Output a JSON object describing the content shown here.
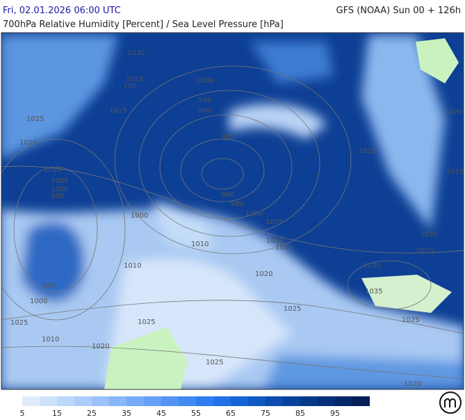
{
  "header": {
    "date": "Fri, 02.01.2026 06:00 UTC",
    "model": "GFS (NOAA) Sun 00 + 126h",
    "title": "700hPa Relative Humidity [Percent] / Sea Level Pressure [hPa]"
  },
  "isobar_labels": [
    "1030",
    "1015",
    "102",
    "1000",
    "995",
    "990",
    "1015",
    "1025",
    "1020",
    "985",
    "1010",
    "1005",
    "1000",
    "995",
    "990",
    "980",
    "1000",
    "1000",
    "1005",
    "1010",
    "1010",
    "1015",
    "1010",
    "1020",
    "995",
    "1000",
    "1030",
    "1035",
    "1025",
    "1025",
    "1025",
    "1025",
    "1010",
    "1020",
    "1025",
    "1020",
    "1020",
    "1020",
    "1015",
    "1025",
    "1020"
  ],
  "colorbar": {
    "range": [
      5,
      105
    ],
    "ticks": [
      5,
      15,
      25,
      35,
      45,
      55,
      65,
      75,
      85,
      95
    ],
    "steps": [
      5,
      10,
      15,
      20,
      25,
      30,
      35,
      40,
      45,
      50,
      55,
      60,
      65,
      70,
      75,
      80,
      85,
      90,
      95,
      100
    ],
    "colors": [
      "#e0ecfc",
      "#cfe2fb",
      "#bdd7fa",
      "#acccf9",
      "#9ac1f8",
      "#88b6f7",
      "#77abf6",
      "#65a0f5",
      "#5495f4",
      "#428af2",
      "#2f7ef0",
      "#1f72e8",
      "#1565d6",
      "#1058c2",
      "#0b4cae",
      "#08429b",
      "#063888",
      "#052f76",
      "#042766",
      "#031f58"
    ]
  }
}
